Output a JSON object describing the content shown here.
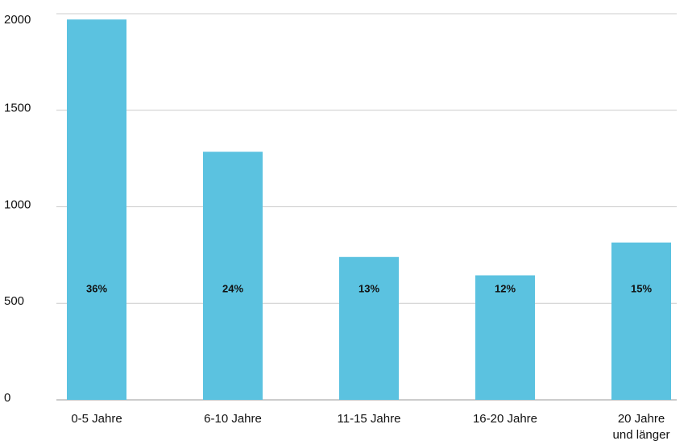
{
  "chart_data": {
    "type": "bar",
    "categories": [
      "0-5 Jahre",
      "6-10 Jahre",
      "11-15 Jahre",
      "16-20 Jahre",
      "20 Jahre und länger"
    ],
    "values": [
      1970,
      1285,
      740,
      645,
      815
    ],
    "bar_labels": [
      "36%",
      "24%",
      "13%",
      "12%",
      "15%"
    ],
    "color": "#5bc2e0",
    "ylim": [
      0,
      2000
    ],
    "yticks": [
      0,
      500,
      1000,
      1500,
      2000
    ],
    "grid": true
  }
}
